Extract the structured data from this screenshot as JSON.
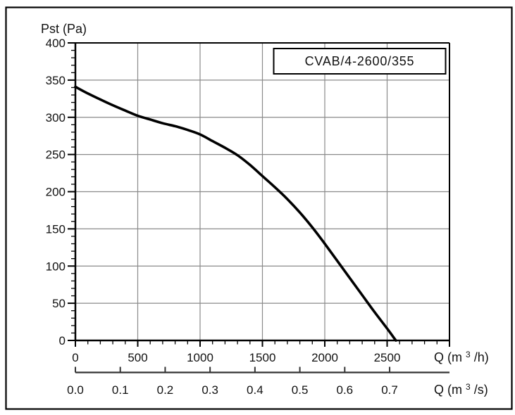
{
  "page": {
    "background": "#ffffff",
    "outer_border_color": "#000000"
  },
  "colors": {
    "grid": "#8a8a8a",
    "axis": "#000000",
    "secondary_axis": "#333333",
    "curve": "#000000",
    "text": "#111111",
    "legend_background": "#ffffff",
    "legend_border": "#000000"
  },
  "legend": {
    "label": "CVAB/4-2600/355",
    "position": "top-right"
  },
  "chart_data": {
    "type": "line",
    "title": "",
    "grid": true,
    "legend": {
      "label": "CVAB/4-2600/355",
      "position": "top-right"
    },
    "y_axis": {
      "title": "Pst (Pa)",
      "min": 0,
      "max": 400,
      "major_ticks": [
        0,
        50,
        100,
        150,
        200,
        250,
        300,
        350,
        400
      ],
      "tick_labels": [
        "0",
        "50",
        "100",
        "150",
        "200",
        "250",
        "300",
        "350",
        "400"
      ],
      "minor_step": 10,
      "gridlines": [
        50,
        100,
        150,
        200,
        250,
        300,
        350
      ]
    },
    "x_axis_primary": {
      "title": {
        "pre": "Q (m",
        "sup": "3",
        "post": "/h)"
      },
      "unit": "m3/h",
      "min": 0,
      "max": 3000,
      "major_ticks": [
        0,
        500,
        1000,
        1500,
        2000,
        2500,
        3000
      ],
      "tick_labels": [
        "0",
        "500",
        "1000",
        "1500",
        "2000",
        "2500",
        ""
      ],
      "minor_step": 100,
      "gridlines": [
        500,
        1000,
        1500,
        2000,
        2500
      ]
    },
    "x_axis_secondary": {
      "title": {
        "pre": "Q (m",
        "sup": "3",
        "post": "/s)"
      },
      "unit": "m3/s",
      "h_per_s": 3600,
      "tick_values": [
        0.0,
        0.1,
        0.2,
        0.3,
        0.4,
        0.5,
        0.6,
        0.7
      ],
      "tick_labels": [
        "0.0",
        "0.1",
        "0.2",
        "0.3",
        "0.4",
        "0.5",
        "0.6",
        "0.7"
      ]
    },
    "series": [
      {
        "name": "CVAB/4-2600/355",
        "color": "#000000",
        "points": [
          [
            0,
            341
          ],
          [
            100,
            332
          ],
          [
            250,
            320
          ],
          [
            400,
            309
          ],
          [
            500,
            302
          ],
          [
            600,
            297
          ],
          [
            700,
            292
          ],
          [
            800,
            288
          ],
          [
            900,
            283
          ],
          [
            1000,
            277
          ],
          [
            1100,
            268
          ],
          [
            1200,
            259
          ],
          [
            1300,
            249
          ],
          [
            1400,
            236
          ],
          [
            1500,
            221
          ],
          [
            1600,
            206
          ],
          [
            1700,
            190
          ],
          [
            1800,
            172
          ],
          [
            1900,
            152
          ],
          [
            2000,
            130
          ],
          [
            2100,
            107
          ],
          [
            2200,
            84
          ],
          [
            2300,
            61
          ],
          [
            2400,
            38
          ],
          [
            2500,
            16
          ],
          [
            2570,
            0
          ]
        ]
      }
    ]
  }
}
